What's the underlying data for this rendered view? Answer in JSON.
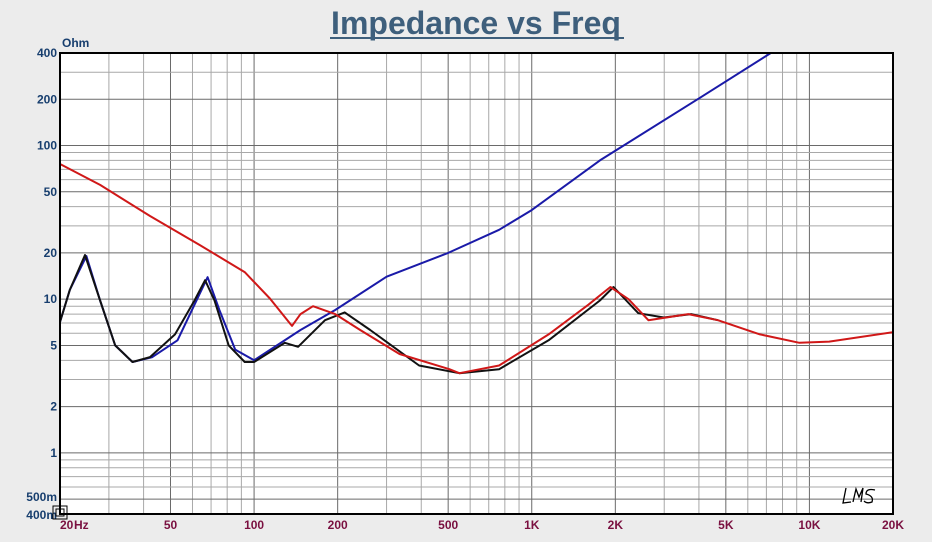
{
  "chart_data": {
    "type": "line",
    "title": "Impedance vs Freq",
    "xlabel": "Hz",
    "ylabel": "Ohm",
    "x_scale": "log",
    "y_scale": "log",
    "xlim": [
      20,
      20000
    ],
    "ylim": [
      0.4,
      400
    ],
    "grid": true,
    "x_ticks": [
      {
        "value": 20,
        "label": "20"
      },
      {
        "value": 50,
        "label": "50"
      },
      {
        "value": 100,
        "label": "100"
      },
      {
        "value": 200,
        "label": "200"
      },
      {
        "value": 500,
        "label": "500"
      },
      {
        "value": 1000,
        "label": "1K"
      },
      {
        "value": 2000,
        "label": "2K"
      },
      {
        "value": 5000,
        "label": "5K"
      },
      {
        "value": 10000,
        "label": "10K"
      },
      {
        "value": 20000,
        "label": "20K"
      }
    ],
    "y_ticks": [
      {
        "value": 400,
        "label": "400"
      },
      {
        "value": 200,
        "label": "200"
      },
      {
        "value": 100,
        "label": "100"
      },
      {
        "value": 50,
        "label": "50"
      },
      {
        "value": 20,
        "label": "20"
      },
      {
        "value": 10,
        "label": "10"
      },
      {
        "value": 5,
        "label": "5"
      },
      {
        "value": 2,
        "label": "2"
      },
      {
        "value": 1,
        "label": "1"
      },
      {
        "value": 0.5,
        "label": "500m"
      },
      {
        "value": 0.4,
        "label": "400m"
      }
    ],
    "logo": "LMS",
    "series": [
      {
        "color": "#1a1aa8",
        "points": [
          [
            20,
            7.1
          ],
          [
            21.7,
            11.5
          ],
          [
            24.9,
            19.1
          ],
          [
            27.9,
            9.8
          ],
          [
            31.6,
            5.0
          ],
          [
            36.5,
            3.9
          ],
          [
            43,
            4.2
          ],
          [
            53,
            5.4
          ],
          [
            61,
            9.2
          ],
          [
            68,
            13.9
          ],
          [
            75,
            8.5
          ],
          [
            85.5,
            4.7
          ],
          [
            100,
            4.0
          ],
          [
            147,
            6.3
          ],
          [
            196,
            8.5
          ],
          [
            300,
            14
          ],
          [
            500,
            20
          ],
          [
            763,
            28.3
          ],
          [
            1000,
            38
          ],
          [
            1760,
            80
          ],
          [
            4060,
            206
          ],
          [
            7260,
            400
          ],
          [
            20000,
            400
          ]
        ]
      },
      {
        "color": "#111111",
        "points": [
          [
            20,
            7.1
          ],
          [
            21.7,
            11.5
          ],
          [
            24.6,
            19.4
          ],
          [
            27.9,
            9.8
          ],
          [
            31.6,
            5.0
          ],
          [
            36.5,
            3.9
          ],
          [
            42.2,
            4.2
          ],
          [
            51.9,
            5.9
          ],
          [
            61,
            9.8
          ],
          [
            66.6,
            13.3
          ],
          [
            72,
            9.8
          ],
          [
            81,
            5.0
          ],
          [
            92.5,
            3.9
          ],
          [
            100,
            3.9
          ],
          [
            129,
            5.2
          ],
          [
            144,
            4.9
          ],
          [
            180,
            7.3
          ],
          [
            212,
            8.2
          ],
          [
            262,
            6.3
          ],
          [
            393,
            3.7
          ],
          [
            549,
            3.3
          ],
          [
            763,
            3.5
          ],
          [
            1150,
            5.4
          ],
          [
            1760,
            9.8
          ],
          [
            1970,
            12.0
          ],
          [
            2420,
            8.1
          ],
          [
            2990,
            7.6
          ],
          [
            3750,
            8.0
          ],
          [
            4680,
            7.3
          ]
        ]
      },
      {
        "color": "#d01818",
        "points": [
          [
            20,
            75.8
          ],
          [
            27.9,
            55.4
          ],
          [
            42.2,
            34.8
          ],
          [
            63.8,
            22.5
          ],
          [
            92.5,
            15.0
          ],
          [
            114,
            10.1
          ],
          [
            135,
            6.9
          ],
          [
            137,
            6.7
          ],
          [
            147,
            8.0
          ],
          [
            163,
            9.0
          ],
          [
            196,
            8.0
          ],
          [
            241,
            6.3
          ],
          [
            334,
            4.4
          ],
          [
            505,
            3.5
          ],
          [
            549,
            3.3
          ],
          [
            763,
            3.7
          ],
          [
            1150,
            5.9
          ],
          [
            1600,
            9.2
          ],
          [
            1920,
            12.0
          ],
          [
            2230,
            10
          ],
          [
            2630,
            7.3
          ],
          [
            3660,
            8.0
          ],
          [
            4680,
            7.3
          ],
          [
            6640,
            5.9
          ],
          [
            9200,
            5.2
          ],
          [
            11780,
            5.3
          ],
          [
            20000,
            6.1
          ]
        ]
      }
    ]
  }
}
